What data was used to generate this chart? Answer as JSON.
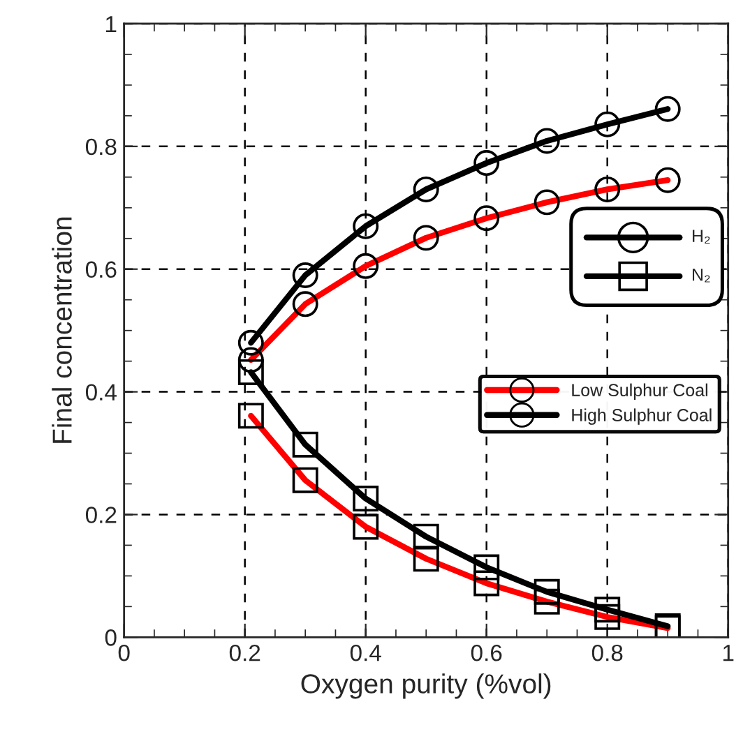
{
  "chart_data": {
    "type": "line",
    "xlabel": "Oxygen purity (%vol)",
    "ylabel": "Final concentration",
    "x": [
      0.21,
      0.3,
      0.4,
      0.5,
      0.6,
      0.7,
      0.8,
      0.9
    ],
    "series": [
      {
        "name": "Low Sulphur Coal",
        "color": "#ff0000",
        "marker": "circle",
        "values": [
          0.452,
          0.543,
          0.605,
          0.651,
          0.683,
          0.709,
          0.73,
          0.745
        ]
      },
      {
        "name": "High Sulphur Coal",
        "color": "#000000",
        "marker": "circle",
        "values": [
          0.48,
          0.59,
          0.67,
          0.73,
          0.773,
          0.809,
          0.836,
          0.861
        ]
      },
      {
        "color": "#ff0000",
        "marker": "square",
        "values": [
          0.361,
          0.256,
          0.18,
          0.128,
          0.088,
          0.058,
          0.033,
          0.015
        ]
      },
      {
        "color": "#000000",
        "marker": "square",
        "values": [
          0.432,
          0.314,
          0.226,
          0.164,
          0.114,
          0.074,
          0.045,
          0.018
        ]
      }
    ],
    "annotations": [
      "H₂",
      "N₂"
    ],
    "xlim": [
      0,
      1
    ],
    "ylim": [
      0,
      1
    ],
    "xticks": [
      0,
      0.2,
      0.4,
      0.6,
      0.8,
      1
    ],
    "yticks": [
      0,
      0.2,
      0.4,
      0.6,
      0.8,
      1
    ],
    "grid": true,
    "legend": "right",
    "line_style": "solid"
  }
}
